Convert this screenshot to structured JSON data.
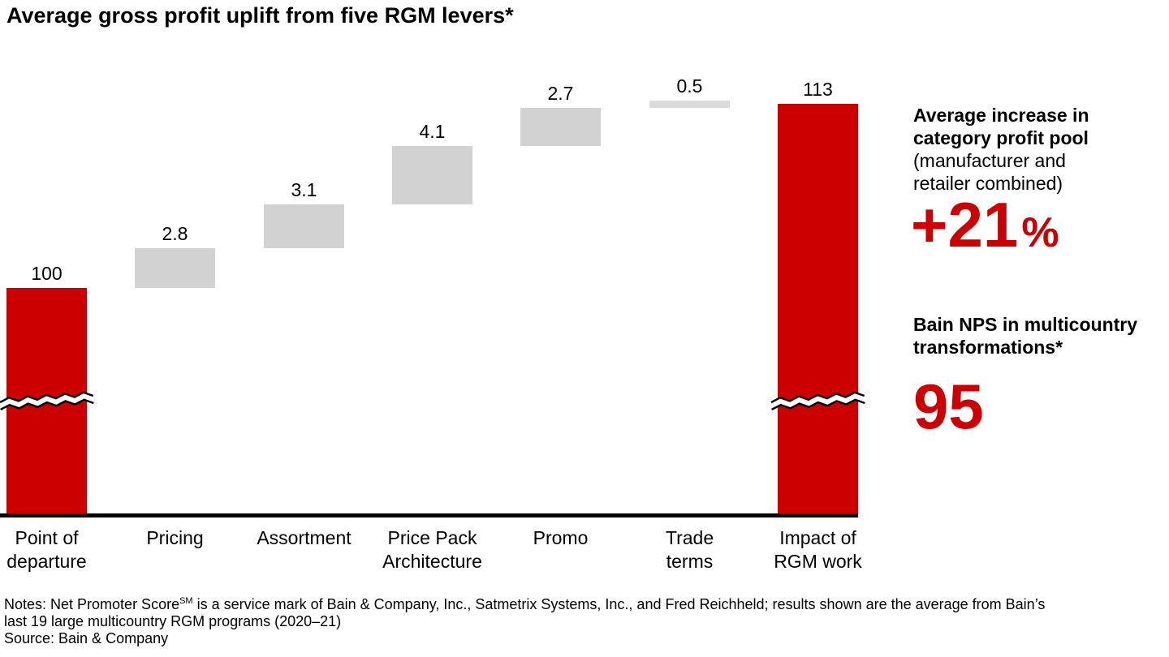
{
  "title": "Average gross profit uplift from five RGM levers*",
  "colors": {
    "accent_red": "#CC0000",
    "bar_gray": "#D2D2D2",
    "bar_gray_light": "#DBDBDB",
    "axis_black": "#000000"
  },
  "chart_data": {
    "type": "bar",
    "subtype": "waterfall",
    "title": "Average gross profit uplift from five RGM levers*",
    "categories": [
      "Point of\ndeparture",
      "Pricing",
      "Assortment",
      "Price Pack\nArchitecture",
      "Promo",
      "Trade\nterms",
      "Impact of\nRGM work"
    ],
    "values": [
      100,
      2.8,
      3.1,
      4.1,
      2.7,
      0.5,
      113
    ],
    "value_labels": [
      "100",
      "2.8",
      "3.1",
      "4.1",
      "2.7",
      "0.5",
      "113"
    ],
    "bar_kinds": [
      "start",
      "step",
      "step",
      "step",
      "step",
      "step",
      "total"
    ],
    "bar_color_roles": [
      "accent_red",
      "bar_gray",
      "bar_gray",
      "bar_gray",
      "bar_gray",
      "bar_gray_light",
      "accent_red"
    ],
    "axis_break_bars": [
      0,
      6
    ],
    "xlabel": "",
    "ylabel": "",
    "grid": false,
    "legend": false,
    "baseline": "black x-axis; start and total bars broken with zigzag marks"
  },
  "side_panel": {
    "stat1": {
      "heading_bold": "Average increase in\ncategory profit pool",
      "heading_note": "(manufacturer and\nretailer combined)",
      "value": "+21",
      "unit": "%"
    },
    "stat2": {
      "heading": "Bain NPS in multicountry\ntransformations*",
      "value": "95"
    }
  },
  "notes": {
    "line1_pre": "Notes: Net Promoter Score",
    "line1_sup": "SM",
    "line1_post": " is a service mark of Bain & Company, Inc., Satmetrix Systems, Inc., and Fred Reichheld; results shown are the average from Bain’s",
    "line2": "last 19 large multicountry RGM programs (2020–21)",
    "source": "Source: Bain & Company"
  }
}
